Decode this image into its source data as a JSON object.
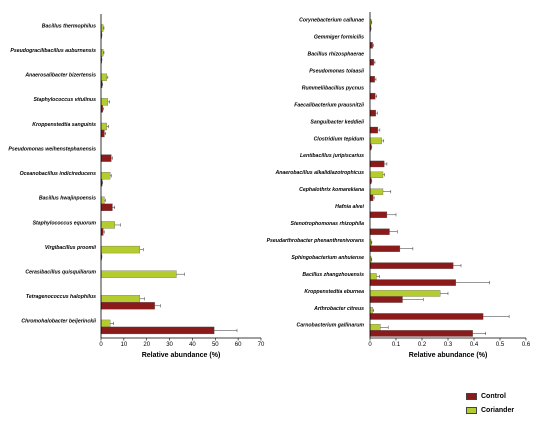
{
  "colors": {
    "control": "#8b1a1a",
    "coriander": "#b5cc2e",
    "axis": "#000000",
    "error": "#333333"
  },
  "legend": [
    {
      "name": "Control",
      "color": "#8b1a1a"
    },
    {
      "name": "Coriander",
      "color": "#b5cc2e"
    }
  ],
  "chart_data": [
    {
      "type": "bar",
      "orientation": "horizontal",
      "xlabel": "Relative abundance (%)",
      "xlim": [
        0,
        70
      ],
      "xticks": [
        "0",
        "10",
        "20",
        "30",
        "40",
        "50",
        "60",
        "70"
      ],
      "categories": [
        "Bacillus thermophilus",
        "Pseudogracilibacillus auburnensis",
        "Anaerosalibacter bizertensis",
        "Staphylococcus vitulinus",
        "Kroppenstedtia sanguinis",
        "Pseudomonas weihenstephanensis",
        "Oceanobacillus indicireducens",
        "Bacillus hwajinpoensis",
        "Staphylococcus equorum",
        "Virgibacillus proomii",
        "Cerasibacillus quisquiliarum",
        "Tetragenococcus halophilus",
        "Chromohalobacter beijerinckii"
      ],
      "series": [
        {
          "name": "Coriander",
          "values": [
            1.0,
            1.0,
            2.5,
            3.0,
            2.5,
            0.0,
            4.0,
            1.5,
            6.0,
            17.0,
            33.0,
            17.0,
            4.0
          ],
          "errors": [
            0.3,
            0.3,
            0.5,
            0.8,
            0.8,
            0.0,
            0.5,
            0.4,
            2.5,
            1.5,
            3.5,
            2.0,
            1.5
          ]
        },
        {
          "name": "Control",
          "values": [
            0.3,
            0.3,
            0.5,
            0.8,
            1.5,
            4.5,
            0.5,
            5.0,
            1.0,
            0.3,
            0.0,
            23.5,
            49.5
          ],
          "errors": [
            0.1,
            0.1,
            0.2,
            0.3,
            0.5,
            0.5,
            0.2,
            1.0,
            0.4,
            0.1,
            0.0,
            2.5,
            10.0
          ]
        }
      ]
    },
    {
      "type": "bar",
      "orientation": "horizontal",
      "xlabel": "Relative abundance (%)",
      "xlim": [
        0,
        0.6
      ],
      "xticks": [
        "0",
        "0.1",
        "0.2",
        "0.3",
        "0.4",
        "0.5",
        "0.6"
      ],
      "categories": [
        "Corynebacterium callunae",
        "Gemmiger formicilis",
        "Bacillus rhizosphaerae",
        "Pseudomonas tolaasii",
        "Rummeliibacillus pycnus",
        "Faecalibacterium prausnitzii",
        "Sanguibacter keddieii",
        "Clostridium tepidum",
        "Lentibacillus juripiscarius",
        "Anaerobacillus alkalidiazotrophicus",
        "Cephalothrix komarekiana",
        "Hafnia alvei",
        "Stenotrophomonas rhizophila",
        "Pseudarthrobacter phenanthrenivorans",
        "Sphingobacterium anhuiense",
        "Bacillus zhangzhouensis",
        "Kroppenstedtia eburnea",
        "Arthrobacter citreus",
        "Carnobacterium gallinarum"
      ],
      "series": [
        {
          "name": "Coriander",
          "values": [
            0.005,
            0.0,
            0.0,
            0.0,
            0.0,
            0.0,
            0.0,
            0.045,
            0.0,
            0.05,
            0.05,
            0.0,
            0.0,
            0.005,
            0.005,
            0.025,
            0.27,
            0.01,
            0.04
          ],
          "errors": [
            0.002,
            0.0,
            0.0,
            0.0,
            0.0,
            0.0,
            0.0,
            0.008,
            0.0,
            0.006,
            0.03,
            0.0,
            0.0,
            0.002,
            0.002,
            0.012,
            0.03,
            0.004,
            0.03
          ]
        },
        {
          "name": "Control",
          "values": [
            0.003,
            0.01,
            0.015,
            0.018,
            0.02,
            0.022,
            0.03,
            0.005,
            0.055,
            0.005,
            0.012,
            0.065,
            0.075,
            0.115,
            0.32,
            0.33,
            0.125,
            0.435,
            0.395
          ],
          "errors": [
            0.001,
            0.003,
            0.004,
            0.005,
            0.006,
            0.006,
            0.008,
            0.002,
            0.01,
            0.002,
            0.004,
            0.035,
            0.03,
            0.05,
            0.03,
            0.13,
            0.08,
            0.1,
            0.05
          ]
        }
      ]
    }
  ]
}
